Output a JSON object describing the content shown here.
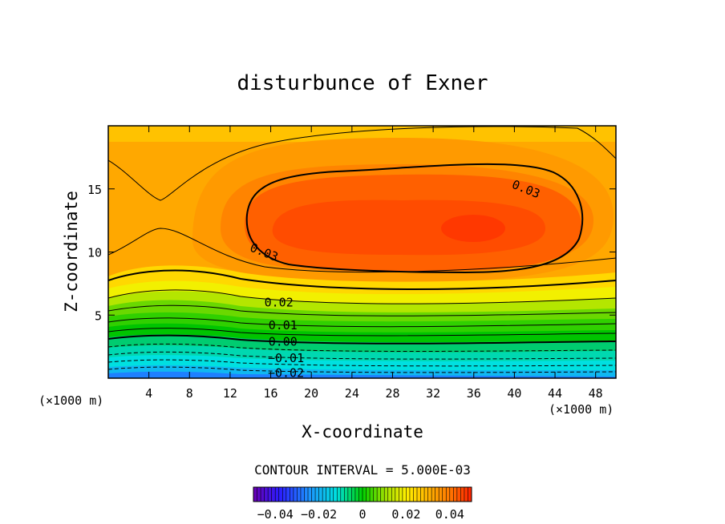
{
  "chart_data": {
    "type": "contour",
    "title": "disturbunce of Exner",
    "xlabel": "X-coordinate",
    "ylabel": "Z-coordinate",
    "x_units": "(×1000 m)",
    "y_units": "(×1000 m)",
    "xlim": [
      0,
      50
    ],
    "ylim": [
      0,
      20
    ],
    "x_ticks": [
      4,
      8,
      12,
      16,
      20,
      24,
      28,
      32,
      36,
      40,
      44,
      48
    ],
    "y_ticks": [
      5,
      10,
      15
    ],
    "contour_interval_label": "CONTOUR INTERVAL = 5.000E-03",
    "contour_interval": 0.005,
    "contour_labels": [
      {
        "text": "0.03",
        "x": 41.0,
        "y": 15.0
      },
      {
        "text": "0.03",
        "x": 15.2,
        "y": 10.0
      },
      {
        "text": "0.02",
        "x": 16.8,
        "y": 6.0
      },
      {
        "text": "0.01",
        "x": 17.2,
        "y": 4.2
      },
      {
        "text": "0.00",
        "x": 17.2,
        "y": 2.9
      },
      {
        "text": "−0.01",
        "x": 17.5,
        "y": 1.6
      },
      {
        "text": "−0.02",
        "x": 17.5,
        "y": 0.4
      }
    ],
    "colorbar": {
      "range": [
        -0.05,
        0.05
      ],
      "tick_values": [
        -0.04,
        -0.02,
        0,
        0.02,
        0.04
      ],
      "tick_labels": [
        "−0.04",
        "−0.02",
        "0",
        "0.02",
        "0.04"
      ]
    }
  }
}
